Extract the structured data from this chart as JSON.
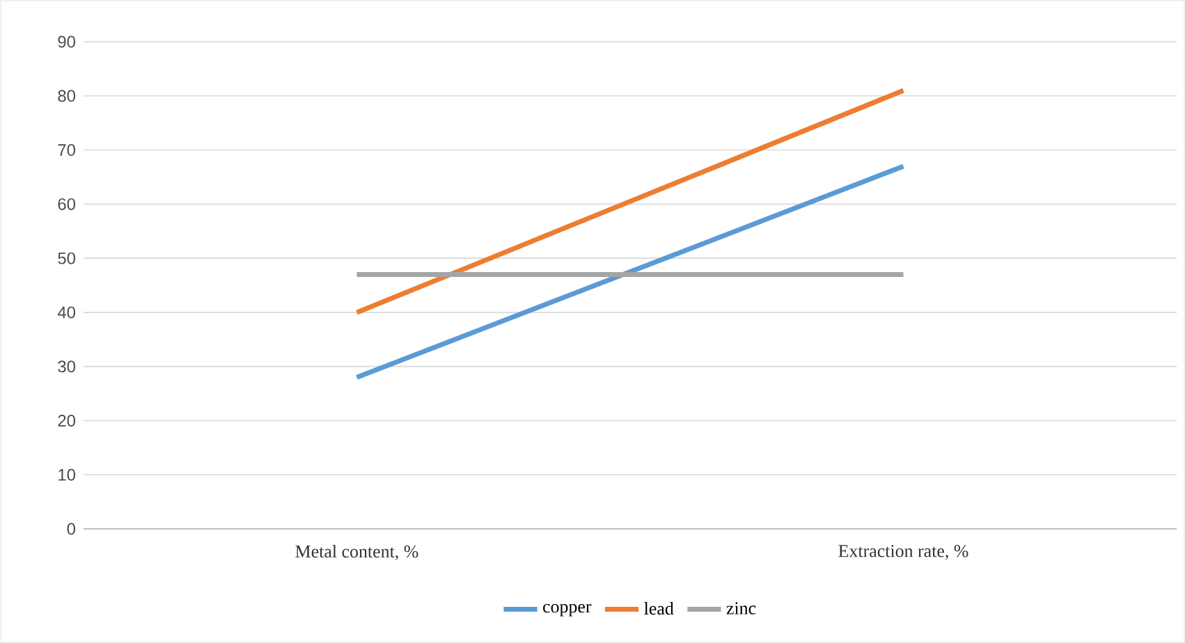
{
  "chart_data": {
    "type": "line",
    "categories": [
      "Metal content, %",
      "Extraction rate, %"
    ],
    "series": [
      {
        "name": "copper",
        "color": "#5b9bd5",
        "values": [
          28,
          67
        ]
      },
      {
        "name": "lead",
        "color": "#ed7d31",
        "values": [
          40,
          81
        ]
      },
      {
        "name": "zinc",
        "color": "#a5a5a5",
        "values": [
          47,
          47
        ]
      }
    ],
    "ylim": [
      0,
      90
    ],
    "yticks": [
      0,
      10,
      20,
      30,
      40,
      50,
      60,
      70,
      80,
      90
    ],
    "grid": "y",
    "legend": "bottom",
    "marker": "none",
    "line_style": "solid"
  }
}
